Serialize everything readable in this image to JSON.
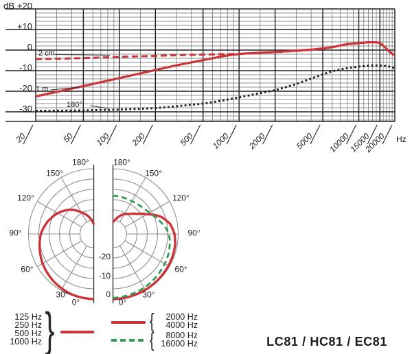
{
  "title": "LC81 / HC81 / EC81",
  "colors": {
    "curve_red": "#cd3439",
    "curve_green": "#2f9c52",
    "grid_major": "#1f1f1f",
    "grid_minor": "#6a6a6a",
    "polar_grid": "#8f8f8f",
    "axis_dark": "#333333",
    "text": "#1c1c1c"
  },
  "chart_data": [
    {
      "type": "line",
      "title": "Frequency response",
      "xlabel": "Hz",
      "ylabel": "dB",
      "x_scale": "log",
      "x_range": [
        20,
        20000
      ],
      "y_range": [
        -35,
        20
      ],
      "grid": true,
      "x_ticks": [
        {
          "v": 20,
          "label": "20"
        },
        {
          "v": 50,
          "label": "50"
        },
        {
          "v": 100,
          "label": "100"
        },
        {
          "v": 200,
          "label": "200"
        },
        {
          "v": 500,
          "label": "500"
        },
        {
          "v": 1000,
          "label": "1000"
        },
        {
          "v": 2000,
          "label": "2000"
        },
        {
          "v": 5000,
          "label": "5000"
        },
        {
          "v": 10000,
          "label": "10000"
        },
        {
          "v": 15000,
          "label": "15000"
        },
        {
          "v": 20000,
          "label": "20000"
        }
      ],
      "x_minor": [
        30,
        40,
        60,
        70,
        80,
        90,
        150,
        300,
        400,
        600,
        700,
        800,
        900,
        1500,
        3000,
        4000,
        6000,
        7000,
        8000,
        9000,
        11000,
        12000,
        13000,
        14000,
        16000,
        17000,
        18000,
        19000
      ],
      "y_ticks": [
        {
          "v": 20,
          "label": "+20"
        },
        {
          "v": 10,
          "label": "+10"
        },
        {
          "v": 0,
          "label": "0"
        },
        {
          "v": -10,
          "label": "-10"
        },
        {
          "v": -20,
          "label": "-20"
        },
        {
          "v": -30,
          "label": "-30"
        }
      ],
      "y_minor_step": 2,
      "series": [
        {
          "name": "2 cm",
          "style": "dashed",
          "color": "#cd3439",
          "points": [
            [
              20,
              -4.4
            ],
            [
              30,
              -4.2
            ],
            [
              50,
              -3.9
            ],
            [
              100,
              -3.3
            ],
            [
              200,
              -2.8
            ],
            [
              300,
              -2.5
            ],
            [
              500,
              -2.2
            ],
            [
              700,
              -2.0
            ],
            [
              1000,
              -1.8
            ],
            [
              1500,
              -1.4
            ],
            [
              2000,
              -1.0
            ],
            [
              3000,
              -0.4
            ],
            [
              4000,
              0.1
            ],
            [
              5000,
              0.8
            ],
            [
              6000,
              1.4
            ],
            [
              8000,
              2.9
            ],
            [
              10000,
              3.4
            ],
            [
              12000,
              3.8
            ],
            [
              14000,
              3.8
            ],
            [
              15000,
              3.4
            ],
            [
              16500,
              1.5
            ],
            [
              18000,
              -0.7
            ],
            [
              20000,
              -2.6
            ]
          ]
        },
        {
          "name": "1 m",
          "style": "solid",
          "color": "#cd3439",
          "points": [
            [
              20,
              -22.5
            ],
            [
              30,
              -20.3
            ],
            [
              50,
              -17.5
            ],
            [
              70,
              -15.6
            ],
            [
              100,
              -13.6
            ],
            [
              150,
              -11.3
            ],
            [
              200,
              -9.7
            ],
            [
              300,
              -7.4
            ],
            [
              500,
              -4.9
            ],
            [
              700,
              -3.2
            ],
            [
              900,
              -2.2
            ],
            [
              1100,
              -1.7
            ],
            [
              1500,
              -1.3
            ],
            [
              2000,
              -0.9
            ],
            [
              3000,
              -0.3
            ],
            [
              4000,
              0.2
            ],
            [
              5000,
              0.8
            ],
            [
              6000,
              1.4
            ],
            [
              8000,
              2.9
            ],
            [
              10000,
              3.4
            ],
            [
              12000,
              3.8
            ],
            [
              14000,
              3.8
            ],
            [
              15000,
              3.4
            ],
            [
              16500,
              1.5
            ],
            [
              18000,
              -0.7
            ],
            [
              20000,
              -2.6
            ]
          ]
        },
        {
          "name": "180°",
          "style": "dotted",
          "color": "#1c1c1c",
          "points": [
            [
              20,
              -29.5
            ],
            [
              50,
              -29.3
            ],
            [
              100,
              -28.9
            ],
            [
              200,
              -28.2
            ],
            [
              300,
              -27.3
            ],
            [
              500,
              -26.0
            ],
            [
              700,
              -24.7
            ],
            [
              1000,
              -23.0
            ],
            [
              1500,
              -20.9
            ],
            [
              2000,
              -19.5
            ],
            [
              3000,
              -16.5
            ],
            [
              4000,
              -13.8
            ],
            [
              5000,
              -11.8
            ],
            [
              6000,
              -10.3
            ],
            [
              7000,
              -9.4
            ],
            [
              8000,
              -8.8
            ],
            [
              10000,
              -8.0
            ],
            [
              12000,
              -7.6
            ],
            [
              14000,
              -7.5
            ],
            [
              16000,
              -7.6
            ],
            [
              18000,
              -8.0
            ],
            [
              20000,
              -8.8
            ]
          ]
        }
      ]
    },
    {
      "type": "polar",
      "title": "Polar pattern",
      "rings_db": [
        0,
        -5,
        -10,
        -15,
        -20,
        -25
      ],
      "ring_labels": [
        {
          "db": 0,
          "label": "0"
        },
        {
          "db": -10,
          "label": "-10"
        },
        {
          "db": -20,
          "label": "-20"
        }
      ],
      "angle_ticks": [
        {
          "deg": 0,
          "label": "0°"
        },
        {
          "deg": 30,
          "label": "30°"
        },
        {
          "deg": 60,
          "label": "60°"
        },
        {
          "deg": 90,
          "label": "90°"
        },
        {
          "deg": 120,
          "label": "120°"
        },
        {
          "deg": 150,
          "label": "150°"
        },
        {
          "deg": 180,
          "label": "180°"
        }
      ],
      "halves": [
        {
          "side": "left",
          "series": [
            {
              "name": "125-1000 Hz",
              "style": "solid",
              "color": "#cd3439",
              "points": [
                [
                  0,
                  0
                ],
                [
                  20,
                  -0.4
                ],
                [
                  40,
                  -1.5
                ],
                [
                  60,
                  -3.0
                ],
                [
                  75,
                  -4.5
                ],
                [
                  90,
                  -6.0
                ],
                [
                  105,
                  -8.5
                ],
                [
                  120,
                  -11.5
                ],
                [
                  135,
                  -15.0
                ],
                [
                  150,
                  -19.5
                ],
                [
                  160,
                  -22.0
                ],
                [
                  170,
                  -24.5
                ],
                [
                  180,
                  -27.0
                ]
              ]
            }
          ]
        },
        {
          "side": "right",
          "series": [
            {
              "name": "2000-4000 Hz",
              "style": "solid",
              "color": "#cd3439",
              "points": [
                [
                  0,
                  0
                ],
                [
                  30,
                  -0.3
                ],
                [
                  60,
                  -0.6
                ],
                [
                  80,
                  -1.0
                ],
                [
                  90,
                  -1.8
                ],
                [
                  100,
                  -3.5
                ],
                [
                  110,
                  -7.0
                ],
                [
                  120,
                  -12.5
                ],
                [
                  130,
                  -16.5
                ],
                [
                  140,
                  -19.0
                ],
                [
                  150,
                  -20.5
                ],
                [
                  160,
                  -22.5
                ],
                [
                  170,
                  -24.5
                ],
                [
                  180,
                  -26.0
                ]
              ]
            },
            {
              "name": "8000-16000 Hz",
              "style": "dashed",
              "color": "#2f9c52",
              "points": [
                [
                  0,
                  -0.6
                ],
                [
                  30,
                  -1.5
                ],
                [
                  50,
                  -2.3
                ],
                [
                  70,
                  -3.0
                ],
                [
                  85,
                  -4.0
                ],
                [
                  95,
                  -5.5
                ],
                [
                  105,
                  -8.0
                ],
                [
                  115,
                  -10.3
                ],
                [
                  125,
                  -11.8
                ],
                [
                  135,
                  -12.6
                ],
                [
                  150,
                  -13.3
                ],
                [
                  165,
                  -13.3
                ],
                [
                  180,
                  -13.0
                ]
              ]
            }
          ]
        }
      ]
    }
  ],
  "legend": {
    "left_group": {
      "items": [
        "125 Hz",
        "250 Hz",
        "500 Hz",
        "1000 Hz"
      ],
      "brace": "}",
      "swatch": "red-solid"
    },
    "right_group": {
      "items": [
        "2000 Hz",
        "4000 Hz",
        "8000 Hz",
        "16000 Hz"
      ],
      "braces": [
        "{",
        "{"
      ],
      "swatches": [
        "red-solid",
        "green-dashed"
      ]
    }
  }
}
